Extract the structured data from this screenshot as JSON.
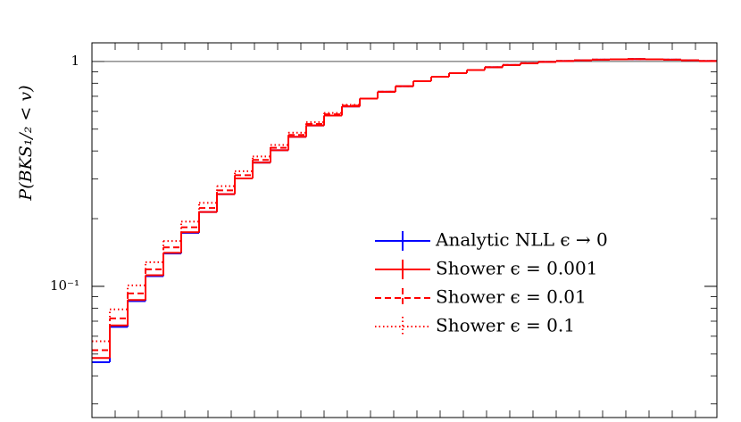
{
  "chart_data": {
    "type": "step",
    "y_label": "P(BKS₁/₂ < v)",
    "categories": [
      null,
      null,
      null,
      null,
      null,
      null,
      null,
      null,
      null,
      null,
      null,
      null,
      null,
      null,
      null,
      null,
      null,
      null,
      null,
      null,
      null,
      null,
      null,
      null,
      null,
      null,
      null,
      null,
      null,
      null,
      null,
      null,
      null,
      null,
      null
    ],
    "series": [
      {
        "name": "Analytic NLL ϵ → 0",
        "color": "#0000ff",
        "dash": "solid",
        "values": [
          0.046,
          0.066,
          0.086,
          0.111,
          0.14,
          0.173,
          0.214,
          0.257,
          0.302,
          0.355,
          0.403,
          0.462,
          0.519,
          0.575,
          0.631,
          0.684,
          0.733,
          0.776,
          0.817,
          0.855,
          0.887,
          0.916,
          0.942,
          0.964,
          0.982,
          0.995,
          1.005,
          1.012,
          1.018,
          1.022,
          1.024,
          1.022,
          1.018,
          1.012,
          1.004
        ]
      },
      {
        "name": "Shower ϵ = 0.001",
        "color": "#ff0000",
        "dash": "solid",
        "values": [
          0.048,
          0.067,
          0.087,
          0.112,
          0.141,
          0.174,
          0.214,
          0.257,
          0.302,
          0.355,
          0.403,
          0.462,
          0.519,
          0.575,
          0.631,
          0.684,
          0.733,
          0.776,
          0.817,
          0.855,
          0.887,
          0.916,
          0.942,
          0.964,
          0.982,
          0.995,
          1.005,
          1.012,
          1.018,
          1.022,
          1.024,
          1.022,
          1.018,
          1.012,
          1.004
        ]
      },
      {
        "name": "Shower ϵ = 0.01",
        "color": "#ff0000",
        "dash": "dashed",
        "values": [
          0.052,
          0.072,
          0.093,
          0.119,
          0.149,
          0.183,
          0.223,
          0.267,
          0.312,
          0.365,
          0.413,
          0.471,
          0.527,
          0.582,
          0.636,
          0.684,
          0.733,
          0.776,
          0.817,
          0.855,
          0.887,
          0.916,
          0.942,
          0.964,
          0.982,
          0.995,
          1.005,
          1.012,
          1.018,
          1.022,
          1.024,
          1.022,
          1.018,
          1.012,
          1.004
        ]
      },
      {
        "name": "Shower ϵ = 0.1",
        "color": "#ff0000",
        "dash": "dotted",
        "values": [
          0.057,
          0.079,
          0.101,
          0.128,
          0.159,
          0.194,
          0.235,
          0.279,
          0.325,
          0.378,
          0.425,
          0.482,
          0.537,
          0.59,
          0.641,
          0.684,
          0.733,
          0.776,
          0.817,
          0.855,
          0.887,
          0.916,
          0.942,
          0.964,
          0.982,
          0.995,
          1.005,
          1.012,
          1.018,
          1.022,
          1.024,
          1.022,
          1.018,
          1.012,
          1.004
        ]
      }
    ],
    "ylim": [
      0.0261,
      1.21
    ],
    "log_y": true,
    "yticks": [
      {
        "value": 0.1,
        "label": "10⁻¹"
      },
      1
    ],
    "reference_line": 1,
    "legend": "lower-right"
  }
}
